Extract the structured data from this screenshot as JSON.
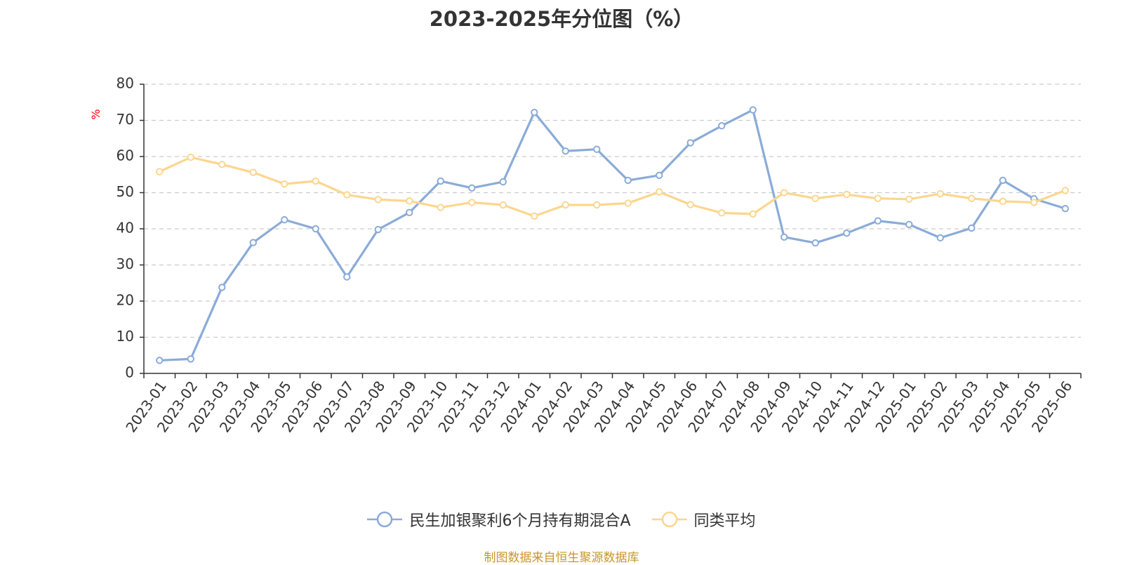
{
  "title": "2023-2025年分位图（%）",
  "footer": "制图数据来自恒生聚源数据库",
  "colors": {
    "fund": "#8aabd8",
    "average": "#fcd68e",
    "axis": "#333333",
    "grid": "#cccccc",
    "unit": "#ff0000"
  },
  "chart_data": {
    "type": "line",
    "title": "2023-2025年分位图（%）",
    "ylabel": "%",
    "ylim": [
      0,
      80
    ],
    "yticks": [
      0,
      10,
      20,
      30,
      40,
      50,
      60,
      70,
      80
    ],
    "grid": "horizontal dashed",
    "legend_position": "bottom",
    "categories": [
      "2023-01",
      "2023-02",
      "2023-03",
      "2023-04",
      "2023-05",
      "2023-06",
      "2023-07",
      "2023-08",
      "2023-09",
      "2023-10",
      "2023-11",
      "2023-12",
      "2024-01",
      "2024-02",
      "2024-03",
      "2024-04",
      "2024-05",
      "2024-06",
      "2024-07",
      "2024-08",
      "2024-09",
      "2024-10",
      "2024-11",
      "2024-12",
      "2025-01",
      "2025-02",
      "2025-03",
      "2025-04",
      "2025-05",
      "2025-06"
    ],
    "series": [
      {
        "name": "民生加银聚利6个月持有期混合A",
        "color": "#8aabd8",
        "values": [
          3.6,
          4.0,
          23.8,
          36.2,
          42.5,
          40.0,
          26.7,
          39.8,
          44.5,
          53.2,
          51.3,
          53.0,
          72.2,
          61.5,
          62.0,
          53.4,
          54.8,
          63.8,
          68.5,
          72.9,
          37.7,
          36.1,
          38.8,
          42.2,
          41.2,
          37.5,
          40.2,
          53.4,
          48.3,
          45.6
        ]
      },
      {
        "name": "同类平均",
        "color": "#fcd68e",
        "values": [
          55.8,
          59.8,
          57.8,
          55.6,
          52.4,
          53.2,
          49.4,
          48.1,
          47.7,
          45.9,
          47.3,
          46.6,
          43.5,
          46.6,
          46.6,
          47.1,
          50.2,
          46.7,
          44.4,
          44.1,
          50.0,
          48.4,
          49.5,
          48.4,
          48.2,
          49.7,
          48.4,
          47.6,
          47.3,
          50.6
        ]
      }
    ]
  }
}
